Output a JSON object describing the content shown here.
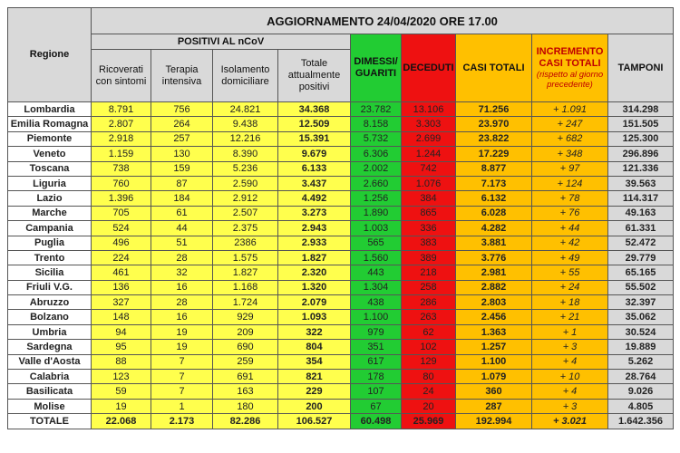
{
  "title": "AGGIORNAMENTO 24/04/2020 ORE 17.00",
  "headers": {
    "regione": "Regione",
    "positivi_group": "POSITIVI AL nCoV",
    "ricoverati": "Ricoverati con sintomi",
    "terapia": "Terapia intensiva",
    "isolamento": "Isolamento domiciliare",
    "totale_positivi": "Totale attualmente positivi",
    "dimessi": "DIMESSI/ GUARITI",
    "deceduti": "DECEDUTI",
    "casi_totali": "CASI TOTALI",
    "incremento": "INCREMENTO CASI TOTALI",
    "incremento_note": "(rispetto al giorno precedente)",
    "tamponi": "TAMPONI"
  },
  "colors": {
    "positivi": "#ffff4d",
    "dimessi": "#22cc33",
    "deceduti": "#ee1111",
    "casi": "#ffc000",
    "tamponi": "#d9d9d9",
    "header": "#d9d9d9"
  },
  "rows": [
    [
      "Lombardia",
      "8.791",
      "756",
      "24.821",
      "34.368",
      "23.782",
      "13.106",
      "71.256",
      "+ 1.091",
      "314.298"
    ],
    [
      "Emilia Romagna",
      "2.807",
      "264",
      "9.438",
      "12.509",
      "8.158",
      "3.303",
      "23.970",
      "+ 247",
      "151.505"
    ],
    [
      "Piemonte",
      "2.918",
      "257",
      "12.216",
      "15.391",
      "5.732",
      "2.699",
      "23.822",
      "+ 682",
      "125.300"
    ],
    [
      "Veneto",
      "1.159",
      "130",
      "8.390",
      "9.679",
      "6.306",
      "1.244",
      "17.229",
      "+ 348",
      "296.896"
    ],
    [
      "Toscana",
      "738",
      "159",
      "5.236",
      "6.133",
      "2.002",
      "742",
      "8.877",
      "+ 97",
      "121.336"
    ],
    [
      "Liguria",
      "760",
      "87",
      "2.590",
      "3.437",
      "2.660",
      "1.076",
      "7.173",
      "+ 124",
      "39.563"
    ],
    [
      "Lazio",
      "1.396",
      "184",
      "2.912",
      "4.492",
      "1.256",
      "384",
      "6.132",
      "+ 78",
      "114.317"
    ],
    [
      "Marche",
      "705",
      "61",
      "2.507",
      "3.273",
      "1.890",
      "865",
      "6.028",
      "+ 76",
      "49.163"
    ],
    [
      "Campania",
      "524",
      "44",
      "2.375",
      "2.943",
      "1.003",
      "336",
      "4.282",
      "+ 44",
      "61.331"
    ],
    [
      "Puglia",
      "496",
      "51",
      "2386",
      "2.933",
      "565",
      "383",
      "3.881",
      "+ 42",
      "52.472"
    ],
    [
      "Trento",
      "224",
      "28",
      "1.575",
      "1.827",
      "1.560",
      "389",
      "3.776",
      "+ 49",
      "29.779"
    ],
    [
      "Sicilia",
      "461",
      "32",
      "1.827",
      "2.320",
      "443",
      "218",
      "2.981",
      "+ 55",
      "65.165"
    ],
    [
      "Friuli V.G.",
      "136",
      "16",
      "1.168",
      "1.320",
      "1.304",
      "258",
      "2.882",
      "+ 24",
      "55.502"
    ],
    [
      "Abruzzo",
      "327",
      "28",
      "1.724",
      "2.079",
      "438",
      "286",
      "2.803",
      "+ 18",
      "32.397"
    ],
    [
      "Bolzano",
      "148",
      "16",
      "929",
      "1.093",
      "1.100",
      "263",
      "2.456",
      "+ 21",
      "35.062"
    ],
    [
      "Umbria",
      "94",
      "19",
      "209",
      "322",
      "979",
      "62",
      "1.363",
      "+ 1",
      "30.524"
    ],
    [
      "Sardegna",
      "95",
      "19",
      "690",
      "804",
      "351",
      "102",
      "1.257",
      "+ 3",
      "19.889"
    ],
    [
      "Valle d'Aosta",
      "88",
      "7",
      "259",
      "354",
      "617",
      "129",
      "1.100",
      "+ 4",
      "5.262"
    ],
    [
      "Calabria",
      "123",
      "7",
      "691",
      "821",
      "178",
      "80",
      "1.079",
      "+ 10",
      "28.764"
    ],
    [
      "Basilicata",
      "59",
      "7",
      "163",
      "229",
      "107",
      "24",
      "360",
      "+ 4",
      "9.026"
    ],
    [
      "Molise",
      "19",
      "1",
      "180",
      "200",
      "67",
      "20",
      "287",
      "+ 3",
      "4.805"
    ]
  ],
  "total": [
    "TOTALE",
    "22.068",
    "2.173",
    "82.286",
    "106.527",
    "60.498",
    "25.969",
    "192.994",
    "+ 3.021",
    "1.642.356"
  ]
}
